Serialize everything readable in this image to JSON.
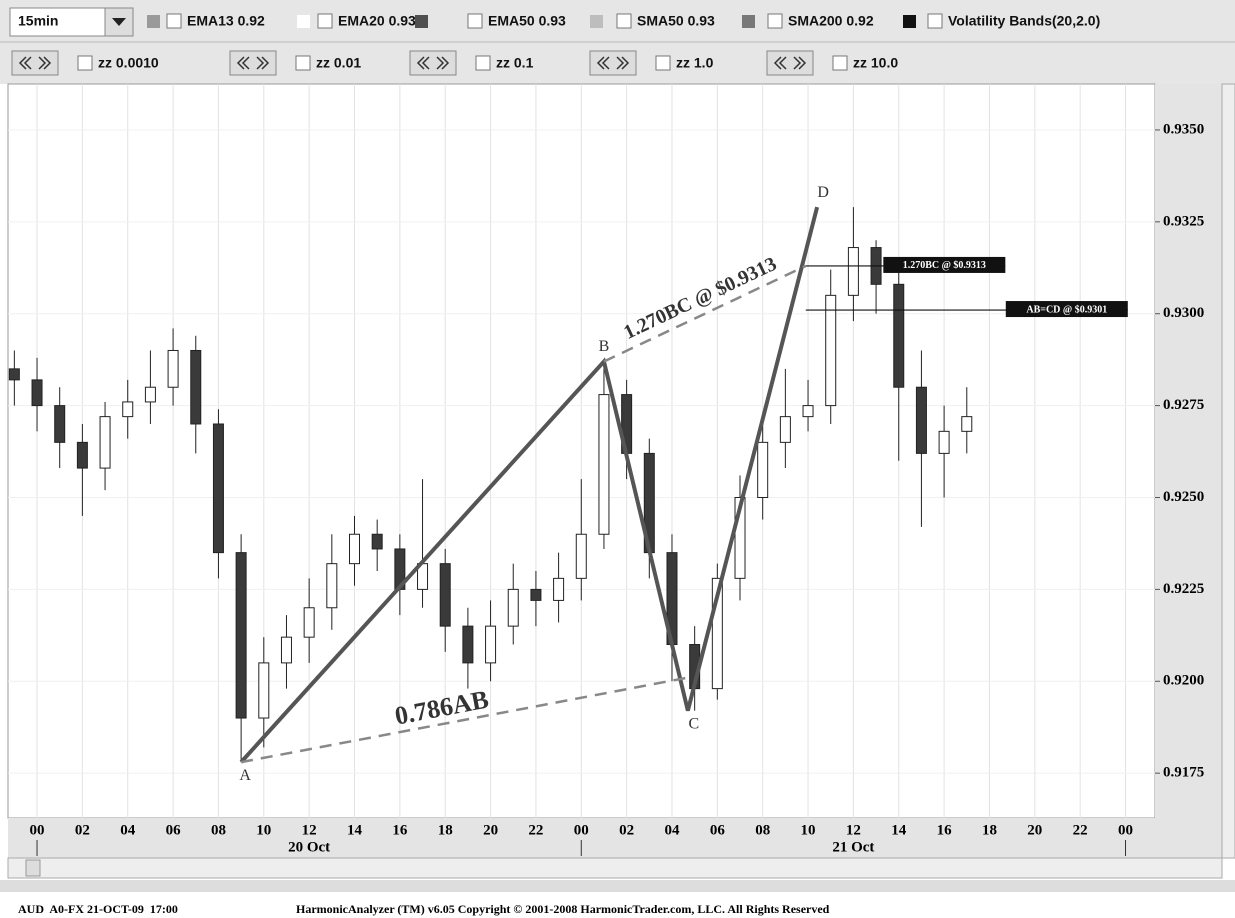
{
  "toolbar": {
    "timeframe": "15min",
    "indicators": [
      {
        "label": "EMA13 0.92",
        "color": "#9a9a9a"
      },
      {
        "label": "EMA20 0.93",
        "color": "#ffffff"
      },
      {
        "label": "EMA50 0.93",
        "color": "#505050"
      },
      {
        "label": "SMA50 0.93",
        "color": "#bdbdbd"
      },
      {
        "label": "SMA200 0.92",
        "color": "#787878"
      },
      {
        "label": "Volatility Bands(20,2.0)",
        "color": "#111111"
      }
    ],
    "zigzag": [
      "zz 0.0010",
      "zz 0.01",
      "zz 0.1",
      "zz 1.0",
      "zz 10.0"
    ]
  },
  "chart_data": {
    "type": "candlestick",
    "up_color": "#ffffff",
    "down_color": "#3a3a3a",
    "x": [
      -1,
      0,
      1,
      2,
      3,
      4,
      5,
      6,
      7,
      8,
      9,
      10,
      11,
      12,
      13,
      14,
      15,
      16,
      17,
      18,
      19,
      20,
      21,
      22,
      23,
      24,
      25,
      26,
      27,
      28,
      29,
      30,
      31,
      32,
      33,
      34,
      35,
      36,
      37,
      38,
      39,
      40,
      41
    ],
    "open": [
      0.9285,
      0.9282,
      0.9275,
      0.9265,
      0.9258,
      0.9272,
      0.9276,
      0.928,
      0.929,
      0.927,
      0.9235,
      0.919,
      0.9205,
      0.9212,
      0.922,
      0.9232,
      0.924,
      0.9236,
      0.9225,
      0.9232,
      0.9215,
      0.9205,
      0.9215,
      0.9225,
      0.9222,
      0.9228,
      0.924,
      0.9278,
      0.9262,
      0.9235,
      0.921,
      0.9198,
      0.9228,
      0.925,
      0.9265,
      0.9272,
      0.9275,
      0.9305,
      0.9318,
      0.9308,
      0.928,
      0.9262,
      0.9268
    ],
    "high": [
      0.929,
      0.9288,
      0.928,
      0.927,
      0.9276,
      0.9282,
      0.929,
      0.9296,
      0.9294,
      0.9274,
      0.924,
      0.9212,
      0.9218,
      0.9228,
      0.924,
      0.9245,
      0.9244,
      0.924,
      0.9255,
      0.9236,
      0.922,
      0.9222,
      0.9232,
      0.923,
      0.9235,
      0.9255,
      0.9287,
      0.9282,
      0.9266,
      0.924,
      0.9215,
      0.9232,
      0.9256,
      0.9272,
      0.9285,
      0.9282,
      0.9312,
      0.9329,
      0.932,
      0.9312,
      0.929,
      0.9275,
      0.928
    ],
    "low": [
      0.9275,
      0.9268,
      0.9258,
      0.9245,
      0.9252,
      0.9266,
      0.927,
      0.9275,
      0.9262,
      0.9228,
      0.9178,
      0.9182,
      0.9198,
      0.9205,
      0.9214,
      0.9226,
      0.923,
      0.9218,
      0.922,
      0.9208,
      0.9198,
      0.92,
      0.921,
      0.9215,
      0.9216,
      0.9222,
      0.9236,
      0.9255,
      0.9228,
      0.92,
      0.9192,
      0.9195,
      0.9222,
      0.9244,
      0.9258,
      0.9268,
      0.927,
      0.9298,
      0.93,
      0.926,
      0.9242,
      0.925,
      0.9262
    ],
    "close": [
      0.9282,
      0.9275,
      0.9265,
      0.9258,
      0.9272,
      0.9276,
      0.928,
      0.929,
      0.927,
      0.9235,
      0.919,
      0.9205,
      0.9212,
      0.922,
      0.9232,
      0.924,
      0.9236,
      0.9225,
      0.9232,
      0.9215,
      0.9205,
      0.9215,
      0.9225,
      0.9222,
      0.9228,
      0.924,
      0.9278,
      0.9262,
      0.9235,
      0.921,
      0.9198,
      0.9228,
      0.925,
      0.9265,
      0.9272,
      0.9275,
      0.9305,
      0.9318,
      0.9308,
      0.928,
      0.9262,
      0.9268,
      0.9272
    ],
    "xlim": [
      -1.28,
      49.3
    ],
    "xticks": [
      {
        "value": 0,
        "label": "00"
      },
      {
        "value": 2,
        "label": "02"
      },
      {
        "value": 4,
        "label": "04"
      },
      {
        "value": 6,
        "label": "06"
      },
      {
        "value": 8,
        "label": "08"
      },
      {
        "value": 10,
        "label": "10"
      },
      {
        "value": 12,
        "label": "12"
      },
      {
        "value": 14,
        "label": "14"
      },
      {
        "value": 16,
        "label": "16"
      },
      {
        "value": 18,
        "label": "18"
      },
      {
        "value": 20,
        "label": "20"
      },
      {
        "value": 22,
        "label": "22"
      },
      {
        "value": 24,
        "label": "00"
      },
      {
        "value": 26,
        "label": "02"
      },
      {
        "value": 28,
        "label": "04"
      },
      {
        "value": 30,
        "label": "06"
      },
      {
        "value": 32,
        "label": "08"
      },
      {
        "value": 34,
        "label": "10"
      },
      {
        "value": 36,
        "label": "12"
      },
      {
        "value": 38,
        "label": "14"
      },
      {
        "value": 40,
        "label": "16"
      },
      {
        "value": 42,
        "label": "18"
      },
      {
        "value": 44,
        "label": "20"
      },
      {
        "value": 46,
        "label": "22"
      },
      {
        "value": 48,
        "label": "00"
      }
    ],
    "days": [
      {
        "label": "20 Oct",
        "x": 12
      },
      {
        "label": "21 Oct",
        "x": 36
      }
    ],
    "day_breaks": [
      0,
      24,
      48
    ],
    "ylim": [
      0.91628,
      0.93625
    ],
    "yticks": [
      {
        "value": 0.9175,
        "label": "0.9175"
      },
      {
        "value": 0.92,
        "label": "0.9200"
      },
      {
        "value": 0.9225,
        "label": "0.9225"
      },
      {
        "value": 0.925,
        "label": "0.9250"
      },
      {
        "value": 0.9275,
        "label": "0.9275"
      },
      {
        "value": 0.93,
        "label": "0.9300"
      },
      {
        "value": 0.9325,
        "label": "0.9325"
      },
      {
        "value": 0.935,
        "label": "0.9350"
      }
    ],
    "grid": true,
    "pattern": [
      {
        "label": "A",
        "x": 9,
        "y": 0.9178
      },
      {
        "label": "B",
        "x": 25,
        "y": 0.9287
      },
      {
        "label": "C",
        "x": 28.7,
        "y": 0.9192
      },
      {
        "label": "D",
        "x": 34.4,
        "y": 0.9329
      }
    ],
    "ratio_lines": [
      {
        "label": "0.786AB",
        "x0": 9,
        "y0": 0.9178,
        "x1": 28.7,
        "y1": 0.9201
      },
      {
        "label": "1.270BC @ $0.9313",
        "x0": 25,
        "y0": 0.9287,
        "x1": 33.9,
        "y1": 0.9313
      }
    ],
    "levels": [
      {
        "label": "1.270BC @ $0.9313",
        "value": 0.9313,
        "x0": 33.9,
        "x1": 42.7
      },
      {
        "label": "AB=CD @ $0.9301",
        "value": 0.9301,
        "x0": 33.9,
        "x1": 48.1
      }
    ]
  },
  "footer": {
    "symbol": "AUD  A0-FX 21-OCT-09  17:00",
    "copyright": "HarmonicAnalyzer (TM) v6.05 Copyright © 2001-2008 HarmonicTrader.com, LLC. All Rights Reserved"
  }
}
